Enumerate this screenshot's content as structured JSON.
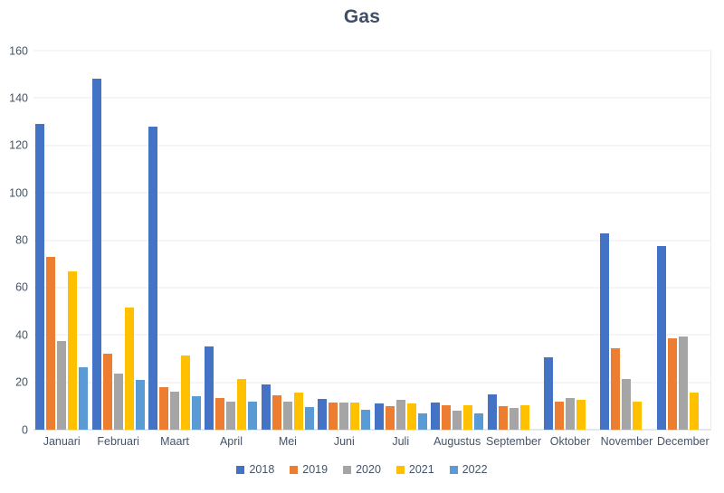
{
  "chart_data": {
    "type": "bar",
    "title": "Gas",
    "categories": [
      "Januari",
      "Februari",
      "Maart",
      "April",
      "Mei",
      "Juni",
      "Juli",
      "Augustus",
      "September",
      "Oktober",
      "November",
      "December"
    ],
    "series": [
      {
        "name": "2018",
        "color": "#4472C4",
        "values": [
          129,
          148,
          128,
          35,
          19,
          13,
          11,
          11.5,
          15,
          30.5,
          83,
          77.5
        ]
      },
      {
        "name": "2019",
        "color": "#ED7D31",
        "values": [
          73,
          32,
          18,
          13.5,
          14.5,
          11.5,
          10,
          10.5,
          10,
          12,
          34.5,
          38.5
        ]
      },
      {
        "name": "2020",
        "color": "#A5A5A5",
        "values": [
          37.5,
          23.5,
          16,
          12,
          12,
          11.5,
          12.5,
          8,
          9,
          13.5,
          21.5,
          39.5
        ]
      },
      {
        "name": "2021",
        "color": "#FFC000",
        "values": [
          67,
          51.5,
          31.5,
          21.5,
          15.5,
          11.5,
          11,
          10.5,
          10.5,
          12.5,
          12,
          15.5
        ]
      },
      {
        "name": "2022",
        "color": "#5B9BD5",
        "values": [
          26.5,
          21,
          14,
          12,
          9.5,
          8.5,
          7,
          7,
          null,
          null,
          null,
          null
        ]
      }
    ],
    "ylim": [
      0,
      160
    ],
    "ytick_step": 20,
    "yticks": [
      0,
      20,
      40,
      60,
      80,
      100,
      120,
      140,
      160
    ],
    "grid": true,
    "legend_position": "bottom",
    "xlabel": "",
    "ylabel": ""
  },
  "text_color": "#44546a",
  "gridline_color": "#e9ebef",
  "axisline_color": "#c9d0dc"
}
